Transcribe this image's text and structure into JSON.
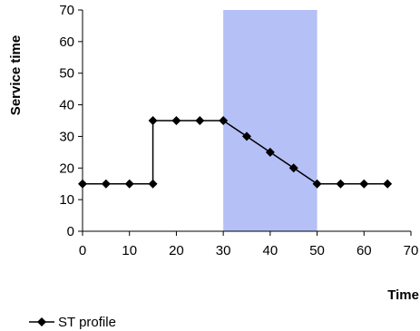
{
  "chart_data": {
    "type": "line",
    "xlabel": "Time",
    "ylabel": "Service time",
    "xlim": [
      0,
      70
    ],
    "ylim": [
      0,
      70
    ],
    "x_ticks": [
      0,
      10,
      20,
      30,
      40,
      50,
      60,
      70
    ],
    "y_ticks": [
      0,
      10,
      20,
      30,
      40,
      50,
      60,
      70
    ],
    "grid": false,
    "legend_position": "bottom-left",
    "highlight_band": {
      "x_start": 30,
      "x_end": 50,
      "color": "#b4c0f6"
    },
    "series": [
      {
        "name": "ST profile",
        "color": "#000000",
        "marker": "diamond",
        "x": [
          0,
          5,
          10,
          15,
          15,
          20,
          25,
          30,
          35,
          40,
          45,
          50,
          55,
          60,
          65
        ],
        "y": [
          15,
          15,
          15,
          15,
          35,
          35,
          35,
          35,
          30,
          25,
          20,
          15,
          15,
          15,
          15
        ]
      }
    ]
  }
}
